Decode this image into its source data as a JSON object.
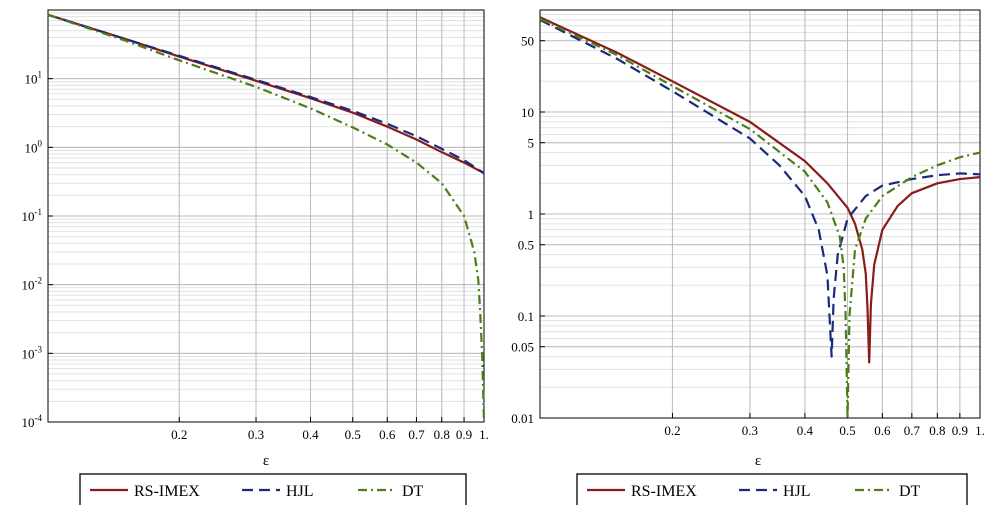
{
  "chart_data": [
    {
      "type": "line",
      "x_scale": "log",
      "y_scale": "log",
      "xlim": [
        0.1,
        1.0
      ],
      "ylim": [
        0.0001,
        100
      ],
      "xlabel": "ε",
      "x_ticks": [
        {
          "v": 0.2,
          "t": "0.2"
        },
        {
          "v": 0.3,
          "t": "0.3"
        },
        {
          "v": 0.4,
          "t": "0.4"
        },
        {
          "v": 0.5,
          "t": "0.5"
        },
        {
          "v": 0.6,
          "t": "0.6"
        },
        {
          "v": 0.7,
          "t": "0.7"
        },
        {
          "v": 0.8,
          "t": "0.8"
        },
        {
          "v": 0.9,
          "t": "0.9"
        },
        {
          "v": 1.0,
          "t": "1."
        }
      ],
      "y_ticks": [
        {
          "v": 10,
          "base": "10",
          "exp": "1"
        },
        {
          "v": 1,
          "base": "10",
          "exp": "0"
        },
        {
          "v": 0.1,
          "base": "10",
          "exp": "-1"
        },
        {
          "v": 0.01,
          "base": "10",
          "exp": "-2"
        },
        {
          "v": 0.001,
          "base": "10",
          "exp": "-3"
        },
        {
          "v": 0.0001,
          "base": "10",
          "exp": "-4"
        }
      ],
      "grid": true,
      "legend_placement": "bottom",
      "series": [
        {
          "name": "RS-IMEX",
          "color": "#8b1a1a",
          "dash": "solid",
          "points": [
            [
              0.1,
              85
            ],
            [
              0.15,
              38
            ],
            [
              0.2,
              21
            ],
            [
              0.3,
              9.3
            ],
            [
              0.4,
              5.2
            ],
            [
              0.5,
              3.2
            ],
            [
              0.6,
              2.0
            ],
            [
              0.7,
              1.3
            ],
            [
              0.8,
              0.85
            ],
            [
              0.9,
              0.6
            ],
            [
              1.0,
              0.42
            ]
          ]
        },
        {
          "name": "HJL",
          "color": "#1a2a7a",
          "dash": "dash",
          "points": [
            [
              0.1,
              85
            ],
            [
              0.15,
              38
            ],
            [
              0.2,
              21.5
            ],
            [
              0.3,
              9.6
            ],
            [
              0.4,
              5.4
            ],
            [
              0.5,
              3.4
            ],
            [
              0.6,
              2.2
            ],
            [
              0.7,
              1.45
            ],
            [
              0.8,
              0.95
            ],
            [
              0.9,
              0.65
            ],
            [
              1.0,
              0.42
            ]
          ]
        },
        {
          "name": "DT",
          "color": "#4f7d1a",
          "dash": "dashdot",
          "points": [
            [
              0.1,
              85
            ],
            [
              0.15,
              36
            ],
            [
              0.2,
              18.5
            ],
            [
              0.3,
              7.6
            ],
            [
              0.4,
              3.7
            ],
            [
              0.5,
              1.95
            ],
            [
              0.6,
              1.1
            ],
            [
              0.7,
              0.6
            ],
            [
              0.8,
              0.3
            ],
            [
              0.9,
              0.1
            ],
            [
              0.95,
              0.03
            ],
            [
              0.97,
              0.012
            ],
            [
              0.98,
              0.004
            ],
            [
              0.99,
              0.001
            ],
            [
              1.0,
              0.0001
            ]
          ]
        }
      ]
    },
    {
      "type": "line",
      "x_scale": "log",
      "y_scale": "log",
      "xlim": [
        0.1,
        1.0
      ],
      "ylim": [
        0.01,
        100
      ],
      "xlabel": "ε",
      "x_ticks": [
        {
          "v": 0.2,
          "t": "0.2"
        },
        {
          "v": 0.3,
          "t": "0.3"
        },
        {
          "v": 0.4,
          "t": "0.4"
        },
        {
          "v": 0.5,
          "t": "0.5"
        },
        {
          "v": 0.6,
          "t": "0.6"
        },
        {
          "v": 0.7,
          "t": "0.7"
        },
        {
          "v": 0.8,
          "t": "0.8"
        },
        {
          "v": 0.9,
          "t": "0.9"
        },
        {
          "v": 1.0,
          "t": "1."
        }
      ],
      "y_ticks": [
        {
          "v": 50,
          "t": "50"
        },
        {
          "v": 10,
          "t": "10"
        },
        {
          "v": 5,
          "t": "5"
        },
        {
          "v": 1,
          "t": "1"
        },
        {
          "v": 0.5,
          "t": "0.5"
        },
        {
          "v": 0.1,
          "t": "0.1"
        },
        {
          "v": 0.05,
          "t": "0.05"
        },
        {
          "v": 0.01,
          "t": "0.01"
        }
      ],
      "grid": true,
      "legend_placement": "bottom",
      "series": [
        {
          "name": "RS-IMEX",
          "color": "#8b1a1a",
          "dash": "solid",
          "points": [
            [
              0.1,
              85
            ],
            [
              0.15,
              38
            ],
            [
              0.2,
              20
            ],
            [
              0.3,
              8.0
            ],
            [
              0.4,
              3.3
            ],
            [
              0.45,
              2.0
            ],
            [
              0.5,
              1.15
            ],
            [
              0.52,
              0.8
            ],
            [
              0.54,
              0.45
            ],
            [
              0.55,
              0.26
            ],
            [
              0.555,
              0.12
            ],
            [
              0.56,
              0.035
            ],
            [
              0.565,
              0.13
            ],
            [
              0.575,
              0.32
            ],
            [
              0.6,
              0.7
            ],
            [
              0.65,
              1.2
            ],
            [
              0.7,
              1.6
            ],
            [
              0.8,
              2.0
            ],
            [
              0.9,
              2.2
            ],
            [
              1.0,
              2.3
            ]
          ]
        },
        {
          "name": "HJL",
          "color": "#1a2a7a",
          "dash": "dash",
          "points": [
            [
              0.1,
              80
            ],
            [
              0.15,
              33
            ],
            [
              0.2,
              16
            ],
            [
              0.3,
              5.5
            ],
            [
              0.35,
              3.0
            ],
            [
              0.4,
              1.5
            ],
            [
              0.43,
              0.7
            ],
            [
              0.45,
              0.25
            ],
            [
              0.46,
              0.04
            ],
            [
              0.465,
              0.15
            ],
            [
              0.475,
              0.4
            ],
            [
              0.5,
              0.9
            ],
            [
              0.55,
              1.5
            ],
            [
              0.6,
              1.9
            ],
            [
              0.7,
              2.2
            ],
            [
              0.8,
              2.4
            ],
            [
              0.9,
              2.5
            ],
            [
              1.0,
              2.45
            ]
          ]
        },
        {
          "name": "DT",
          "color": "#4f7d1a",
          "dash": "dashdot",
          "points": [
            [
              0.1,
              82
            ],
            [
              0.15,
              36
            ],
            [
              0.2,
              18
            ],
            [
              0.3,
              6.8
            ],
            [
              0.4,
              2.6
            ],
            [
              0.45,
              1.3
            ],
            [
              0.48,
              0.6
            ],
            [
              0.49,
              0.3
            ],
            [
              0.495,
              0.1
            ],
            [
              0.5,
              0.01
            ],
            [
              0.505,
              0.1
            ],
            [
              0.52,
              0.45
            ],
            [
              0.55,
              0.9
            ],
            [
              0.6,
              1.5
            ],
            [
              0.7,
              2.3
            ],
            [
              0.8,
              3.0
            ],
            [
              0.9,
              3.6
            ],
            [
              1.0,
              4.0
            ]
          ]
        }
      ]
    }
  ]
}
